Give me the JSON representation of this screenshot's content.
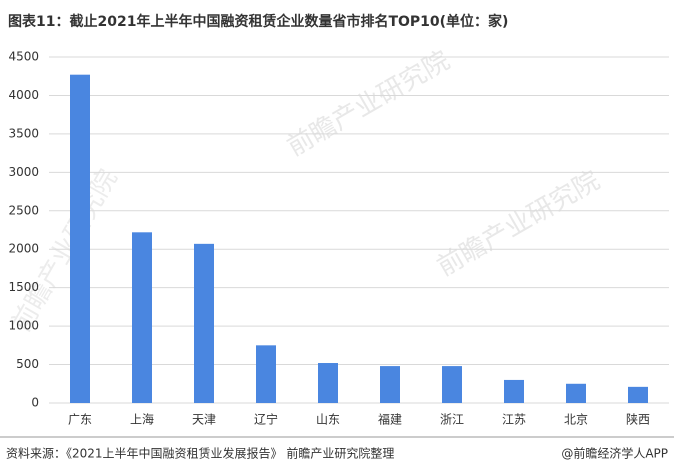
{
  "chart_data": {
    "type": "bar",
    "title": "图表11：截止2021年上半年中国融资租赁企业数量省市排名TOP10(单位：家)",
    "categories": [
      "广东",
      "上海",
      "天津",
      "辽宁",
      "山东",
      "福建",
      "浙江",
      "江苏",
      "北京",
      "陕西"
    ],
    "values": [
      4270,
      2220,
      2070,
      750,
      520,
      480,
      480,
      300,
      250,
      210
    ],
    "color": "#4a86e0",
    "ylim": [
      0,
      4500
    ],
    "yticks": [
      0,
      500,
      1000,
      1500,
      2000,
      2500,
      3000,
      3500,
      4000,
      4500
    ],
    "grid": true,
    "source": "资料来源：《2021上半年中国融资租赁业发展报告》 前瞻产业研究院整理",
    "credit": "@前瞻经济学人APP",
    "watermark": "前瞻产业研究院"
  }
}
